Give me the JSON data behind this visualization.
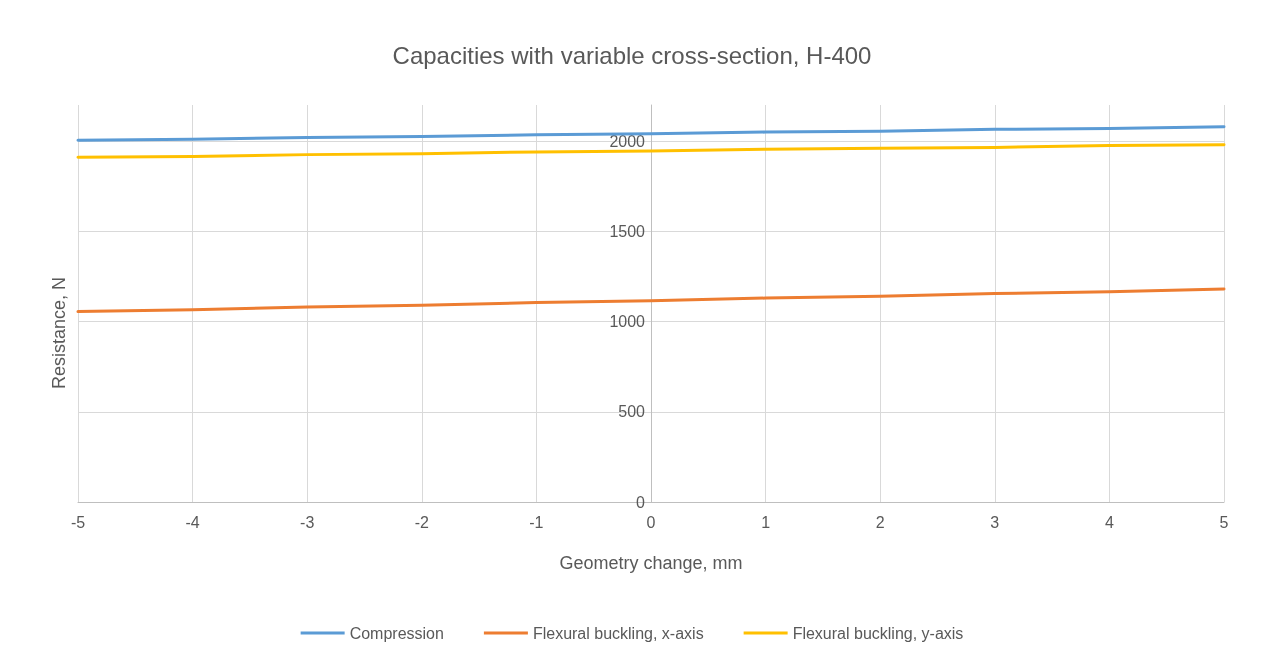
{
  "chart_data": {
    "type": "line",
    "title": "Capacities with variable cross-section, H-400",
    "xlabel": "Geometry change, mm",
    "ylabel": "Resistance, N",
    "x": [
      -5,
      -4,
      -3,
      -2,
      -1,
      0,
      1,
      2,
      3,
      4,
      5
    ],
    "series": [
      {
        "name": "Compression",
        "color": "#5b9bd5",
        "values": [
          2005,
          2010,
          2020,
          2025,
          2035,
          2040,
          2050,
          2055,
          2065,
          2070,
          2080
        ]
      },
      {
        "name": "Flexural buckling, x-axis",
        "color": "#ed7d31",
        "values": [
          1055,
          1065,
          1080,
          1090,
          1105,
          1115,
          1130,
          1140,
          1155,
          1165,
          1180
        ]
      },
      {
        "name": "Flexural buckling, y-axis",
        "color": "#ffc000",
        "values": [
          1910,
          1915,
          1925,
          1930,
          1940,
          1945,
          1955,
          1960,
          1965,
          1975,
          1980
        ]
      }
    ],
    "xlim": [
      -5,
      5
    ],
    "xticks": [
      -5,
      -4,
      -3,
      -2,
      -1,
      0,
      1,
      2,
      3,
      4,
      5
    ],
    "ylim": [
      0,
      2200
    ],
    "yticks": [
      0,
      500,
      1000,
      1500,
      2000
    ],
    "grid": true,
    "legend": "bottom",
    "marker": "none",
    "line_style": "solid"
  }
}
